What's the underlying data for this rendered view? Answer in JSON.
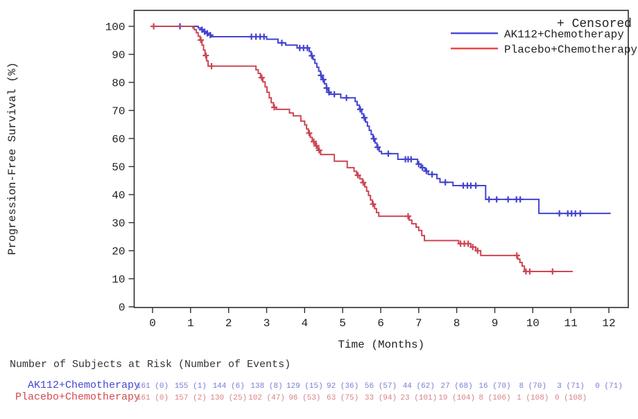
{
  "figure": {
    "background": "#ffffff",
    "axis_color": "#2d2d2d",
    "text_color": "#1f1f1f"
  },
  "legend": {
    "censored_label": "+ Censored",
    "entries": [
      {
        "label": "AK112+Chemotherapy",
        "color": "#4a4ade"
      },
      {
        "label": "Placebo+Chemotherapy",
        "color": "#ee4544"
      }
    ]
  },
  "chart_data": {
    "type": "line",
    "subtype": "kaplan-meier-step",
    "title": "",
    "xlabel": "Time (Months)",
    "ylabel": "Progression-Free Survival (%)",
    "xlim": [
      0,
      12
    ],
    "ylim": [
      0,
      100
    ],
    "xticks": [
      0,
      1,
      2,
      3,
      4,
      5,
      6,
      7,
      8,
      9,
      10,
      11,
      12
    ],
    "yticks": [
      0,
      10,
      20,
      30,
      40,
      50,
      60,
      70,
      80,
      90,
      100
    ],
    "grid": false,
    "legend_position": "top-right-inside",
    "series": [
      {
        "name": "AK112+Chemotherapy",
        "color": "#4343d0",
        "end_time": 12.05,
        "steps": [
          [
            0,
            100
          ],
          [
            1.2,
            99.4
          ],
          [
            1.28,
            98.8
          ],
          [
            1.34,
            98.1
          ],
          [
            1.4,
            97.5
          ],
          [
            1.46,
            96.9
          ],
          [
            1.55,
            96.3
          ],
          [
            3.0,
            95.4
          ],
          [
            3.3,
            94.1
          ],
          [
            3.5,
            93.3
          ],
          [
            3.8,
            92.3
          ],
          [
            4.12,
            91.0
          ],
          [
            4.17,
            89.5
          ],
          [
            4.22,
            88.2
          ],
          [
            4.27,
            86.8
          ],
          [
            4.32,
            85.4
          ],
          [
            4.37,
            84.0
          ],
          [
            4.42,
            82.5
          ],
          [
            4.47,
            81.0
          ],
          [
            4.52,
            79.5
          ],
          [
            4.57,
            78.0
          ],
          [
            4.62,
            76.5
          ],
          [
            4.67,
            75.8
          ],
          [
            4.95,
            74.5
          ],
          [
            5.33,
            73.2
          ],
          [
            5.38,
            71.9
          ],
          [
            5.44,
            70.4
          ],
          [
            5.5,
            68.8
          ],
          [
            5.55,
            67.4
          ],
          [
            5.6,
            65.9
          ],
          [
            5.65,
            64.4
          ],
          [
            5.7,
            62.9
          ],
          [
            5.75,
            61.4
          ],
          [
            5.8,
            59.9
          ],
          [
            5.85,
            58.4
          ],
          [
            5.9,
            56.9
          ],
          [
            5.96,
            55.4
          ],
          [
            6.02,
            54.6
          ],
          [
            6.45,
            52.6
          ],
          [
            6.97,
            50.9
          ],
          [
            7.06,
            49.6
          ],
          [
            7.17,
            48.4
          ],
          [
            7.25,
            47.2
          ],
          [
            7.48,
            45.7
          ],
          [
            7.56,
            44.4
          ],
          [
            7.9,
            43.2
          ],
          [
            8.76,
            38.3
          ],
          [
            10.16,
            33.3
          ]
        ],
        "censor_marks": [
          [
            0.72,
            100
          ],
          [
            1.3,
            98.8
          ],
          [
            1.37,
            98.1
          ],
          [
            1.44,
            97.5
          ],
          [
            1.52,
            96.9
          ],
          [
            2.6,
            96.3
          ],
          [
            2.72,
            96.3
          ],
          [
            2.83,
            96.3
          ],
          [
            2.93,
            96.3
          ],
          [
            3.4,
            94.1
          ],
          [
            3.87,
            92.3
          ],
          [
            3.97,
            92.3
          ],
          [
            4.07,
            92.3
          ],
          [
            4.19,
            89.5
          ],
          [
            4.43,
            82.5
          ],
          [
            4.49,
            81.0
          ],
          [
            4.58,
            78.0
          ],
          [
            4.64,
            76.5
          ],
          [
            4.78,
            75.8
          ],
          [
            5.1,
            74.5
          ],
          [
            5.46,
            70.4
          ],
          [
            5.57,
            67.4
          ],
          [
            5.82,
            59.9
          ],
          [
            5.92,
            56.9
          ],
          [
            6.2,
            54.6
          ],
          [
            6.65,
            52.6
          ],
          [
            6.72,
            52.6
          ],
          [
            6.8,
            52.6
          ],
          [
            7.0,
            50.9
          ],
          [
            7.1,
            49.6
          ],
          [
            7.2,
            48.4
          ],
          [
            7.35,
            47.2
          ],
          [
            7.7,
            44.4
          ],
          [
            8.17,
            43.2
          ],
          [
            8.28,
            43.2
          ],
          [
            8.37,
            43.2
          ],
          [
            8.5,
            43.2
          ],
          [
            8.85,
            38.3
          ],
          [
            9.05,
            38.3
          ],
          [
            9.35,
            38.3
          ],
          [
            9.57,
            38.3
          ],
          [
            9.67,
            38.3
          ],
          [
            10.7,
            33.3
          ],
          [
            10.92,
            33.3
          ],
          [
            11.02,
            33.3
          ],
          [
            11.12,
            33.3
          ],
          [
            11.25,
            33.3
          ]
        ]
      },
      {
        "name": "Placebo+Chemotherapy",
        "color": "#cd4553",
        "end_time": 11.05,
        "steps": [
          [
            0,
            100
          ],
          [
            1.06,
            99.4
          ],
          [
            1.1,
            98.8
          ],
          [
            1.15,
            97.7
          ],
          [
            1.2,
            96.5
          ],
          [
            1.25,
            95.1
          ],
          [
            1.3,
            93.3
          ],
          [
            1.34,
            91.5
          ],
          [
            1.38,
            89.6
          ],
          [
            1.42,
            87.7
          ],
          [
            1.46,
            85.8
          ],
          [
            2.72,
            84.5
          ],
          [
            2.78,
            83.2
          ],
          [
            2.84,
            81.7
          ],
          [
            2.9,
            80.2
          ],
          [
            2.96,
            78.4
          ],
          [
            3.01,
            76.5
          ],
          [
            3.07,
            74.5
          ],
          [
            3.12,
            72.8
          ],
          [
            3.18,
            71.1
          ],
          [
            3.25,
            70.4
          ],
          [
            3.6,
            69.1
          ],
          [
            3.7,
            68.1
          ],
          [
            3.9,
            66.2
          ],
          [
            4.0,
            64.9
          ],
          [
            4.05,
            63.4
          ],
          [
            4.1,
            61.9
          ],
          [
            4.15,
            60.4
          ],
          [
            4.2,
            58.9
          ],
          [
            4.28,
            57.4
          ],
          [
            4.35,
            55.8
          ],
          [
            4.42,
            54.3
          ],
          [
            4.78,
            51.9
          ],
          [
            5.12,
            49.6
          ],
          [
            5.3,
            48.3
          ],
          [
            5.37,
            46.9
          ],
          [
            5.45,
            45.6
          ],
          [
            5.52,
            44.3
          ],
          [
            5.58,
            42.8
          ],
          [
            5.63,
            41.2
          ],
          [
            5.68,
            39.7
          ],
          [
            5.73,
            38.1
          ],
          [
            5.78,
            36.6
          ],
          [
            5.84,
            35.0
          ],
          [
            5.89,
            33.6
          ],
          [
            5.95,
            32.3
          ],
          [
            6.75,
            30.9
          ],
          [
            6.82,
            29.6
          ],
          [
            6.93,
            28.4
          ],
          [
            7.0,
            27.2
          ],
          [
            7.08,
            25.4
          ],
          [
            7.15,
            23.6
          ],
          [
            8.05,
            22.5
          ],
          [
            8.37,
            21.3
          ],
          [
            8.5,
            20.0
          ],
          [
            8.63,
            18.3
          ],
          [
            9.6,
            17.0
          ],
          [
            9.66,
            15.8
          ],
          [
            9.72,
            14.5
          ],
          [
            9.78,
            12.6
          ]
        ],
        "censor_marks": [
          [
            0.03,
            100
          ],
          [
            1.27,
            95.1
          ],
          [
            1.4,
            89.6
          ],
          [
            1.55,
            85.8
          ],
          [
            2.87,
            81.7
          ],
          [
            3.2,
            71.1
          ],
          [
            4.12,
            61.9
          ],
          [
            4.24,
            58.9
          ],
          [
            4.31,
            57.4
          ],
          [
            4.38,
            55.8
          ],
          [
            5.4,
            46.9
          ],
          [
            5.54,
            44.3
          ],
          [
            5.8,
            36.6
          ],
          [
            6.72,
            32.3
          ],
          [
            8.1,
            22.5
          ],
          [
            8.2,
            22.5
          ],
          [
            8.3,
            22.5
          ],
          [
            8.42,
            21.3
          ],
          [
            8.55,
            20.0
          ],
          [
            9.58,
            18.3
          ],
          [
            9.82,
            12.6
          ],
          [
            9.92,
            12.6
          ],
          [
            10.52,
            12.6
          ]
        ]
      }
    ]
  },
  "risk_table": {
    "title": "Number of Subjects at Risk (Number of Events)",
    "times": [
      0,
      1,
      2,
      3,
      4,
      5,
      6,
      7,
      8,
      9,
      10,
      11,
      12
    ],
    "rows": [
      {
        "label": "AK112+Chemotherapy",
        "label_color": "#4545d4",
        "value_color": "#7a7ad8",
        "values": [
          "161 (0)",
          "155 (1)",
          "144 (6)",
          "138 (8)",
          "129 (15)",
          "92 (36)",
          "56 (57)",
          "44 (62)",
          "27 (68)",
          "16 (70)",
          "8 (70)",
          "3 (71)",
          "0 (71)"
        ]
      },
      {
        "label": "Placebo+Chemotherapy",
        "label_color": "#d24a50",
        "value_color": "#d98087",
        "values": [
          "161 (0)",
          "157 (2)",
          "130 (25)",
          "102 (47)",
          "96 (53)",
          "63 (75)",
          "33 (94)",
          "23 (101)",
          "19 (104)",
          "8 (106)",
          "1 (108)",
          "0 (108)"
        ]
      }
    ]
  }
}
